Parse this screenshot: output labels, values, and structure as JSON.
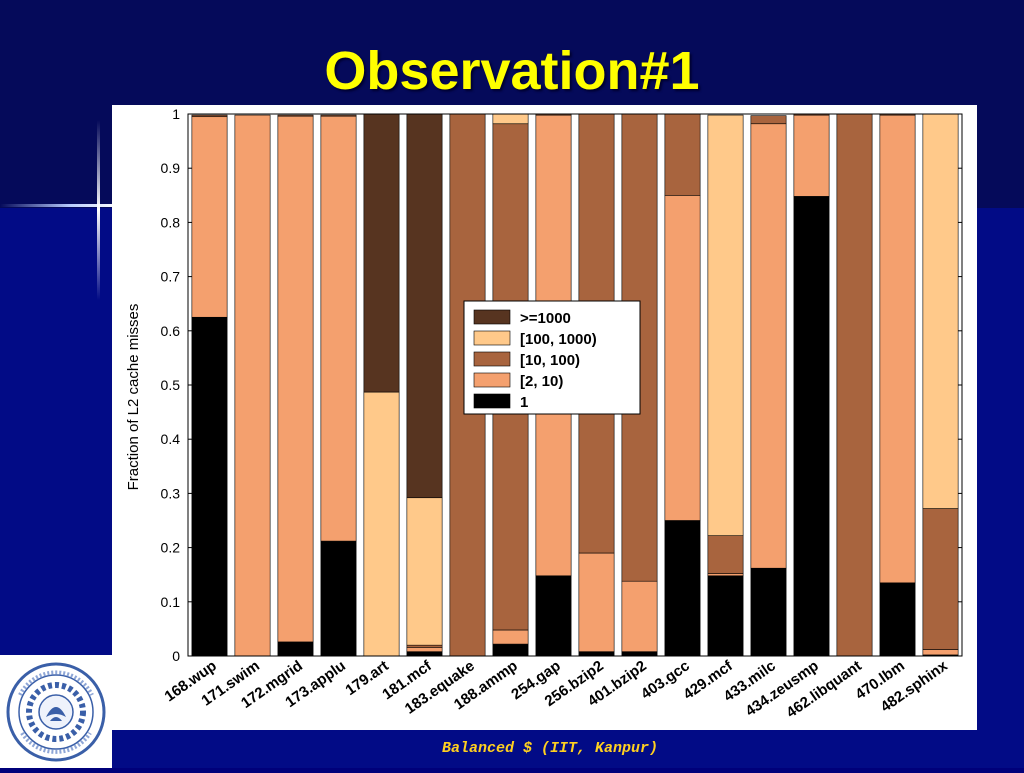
{
  "slide": {
    "title": "Observation#1",
    "footer": "Balanced $ (IIT, Kanpur)",
    "logo": {
      "name": "IIT Kanpur seal",
      "text_top": "भारतीय प्रौद्योगिकी संस्थान कानपुर",
      "text_bottom": "INDIAN INSTITUTE OF TECHNOLOGY KANPUR",
      "colors": {
        "ring": "#3a5fa8",
        "fill": "#ffffff"
      }
    },
    "colors": {
      "background": "#00007a",
      "title": "#ffff00",
      "footer": "#ffd020"
    }
  },
  "chart_data": {
    "type": "bar",
    "stacked": true,
    "title": "",
    "xlabel": "",
    "ylabel": "Fraction of L2 cache misses",
    "ylim": [
      0,
      1
    ],
    "yticks": [
      "0",
      "0.1",
      "0.2",
      "0.3",
      "0.4",
      "0.5",
      "0.6",
      "0.7",
      "0.8",
      "0.9",
      "1"
    ],
    "legend_position": "center",
    "categories": [
      "168.wup",
      "171.swim",
      "172.mgrid",
      "173.applu",
      "179.art",
      "181.mcf",
      "183.equake",
      "188.ammp",
      "254.gap",
      "256.bzip2",
      "401.bzip2",
      "403.gcc",
      "429.mcf",
      "433.milc",
      "434.zeusmp",
      "462.libquant",
      "470.lbm",
      "482.sphinx"
    ],
    "series": [
      {
        "name": "1",
        "color": "#000000",
        "values": [
          0.625,
          0.0,
          0.026,
          0.212,
          0.0,
          0.008,
          0.0,
          0.022,
          0.148,
          0.008,
          0.008,
          0.25,
          0.148,
          0.162,
          0.848,
          0.0,
          0.135,
          0.002
        ]
      },
      {
        "name": "[2, 10)",
        "color": "#f4a06e",
        "values": [
          0.37,
          0.998,
          0.97,
          0.784,
          0.0,
          0.008,
          0.0,
          0.026,
          0.85,
          0.182,
          0.13,
          0.6,
          0.004,
          0.82,
          0.15,
          0.0,
          0.863,
          0.01
        ]
      },
      {
        "name": "[10, 100)",
        "color": "#a8643e",
        "values": [
          0.003,
          0.0,
          0.002,
          0.002,
          0.0,
          0.004,
          1.0,
          0.934,
          0.002,
          0.81,
          0.862,
          0.15,
          0.07,
          0.015,
          0.002,
          1.0,
          0.002,
          0.26
        ]
      },
      {
        "name": "[100, 1000)",
        "color": "#ffc98a",
        "values": [
          0.0,
          0.0,
          0.0,
          0.0,
          0.487,
          0.272,
          0.0,
          0.018,
          0.0,
          0.0,
          0.0,
          0.0,
          0.776,
          0.0,
          0.0,
          0.0,
          0.0,
          0.728
        ]
      },
      {
        "name": ">=1000",
        "color": "#573420",
        "values": [
          0.0,
          0.0,
          0.0,
          0.0,
          0.513,
          0.708,
          0.0,
          0.0,
          0.0,
          0.0,
          0.0,
          0.0,
          0.0,
          0.0,
          0.0,
          0.0,
          0.0,
          0.0
        ]
      }
    ],
    "legend_order": [
      ">=1000",
      "[100, 1000)",
      "[10, 100)",
      "[2, 10)",
      "1"
    ]
  }
}
